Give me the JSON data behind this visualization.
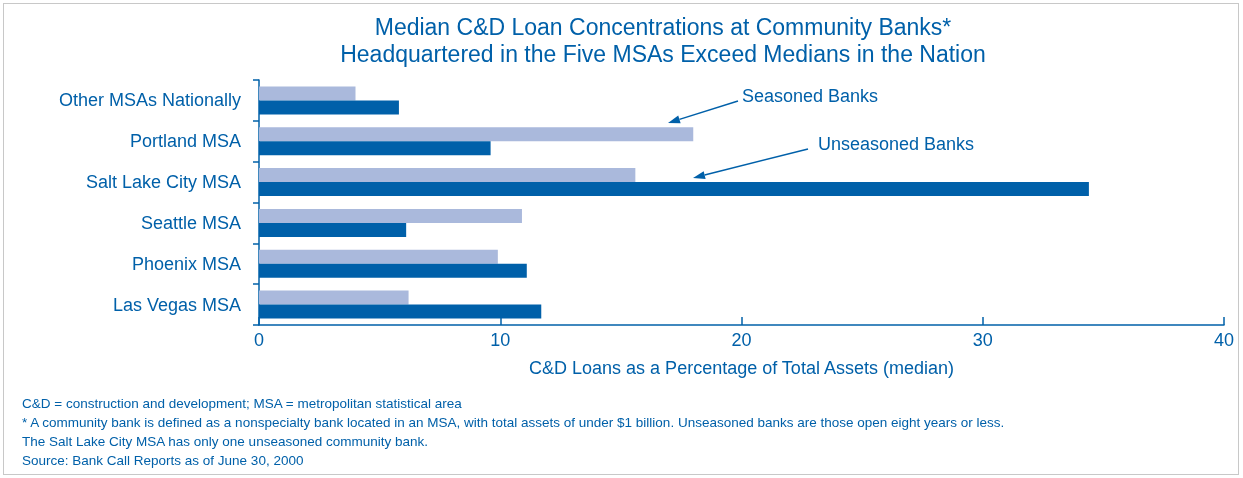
{
  "chart_data": {
    "type": "bar",
    "orientation": "horizontal",
    "title": "Median C&D Loan Concentrations at Community Banks*\nHeadquartered in the Five MSAs Exceed Medians in the Nation",
    "xlabel": "C&D Loans as a Percentage of Total Assets (median)",
    "categories": [
      "Other MSAs Nationally",
      "Portland MSA",
      "Salt Lake City MSA",
      "Seattle MSA",
      "Phoenix MSA",
      "Las Vegas MSA"
    ],
    "series": [
      {
        "name": "Seasoned Banks",
        "color": "#aab9dc",
        "values": [
          4.0,
          18.0,
          15.6,
          10.9,
          9.9,
          6.2
        ]
      },
      {
        "name": "Unseasoned Banks",
        "color": "#0060a9",
        "values": [
          5.8,
          9.6,
          34.4,
          6.1,
          11.1,
          11.7
        ]
      }
    ],
    "xlim": [
      0,
      40
    ],
    "xticks": [
      0,
      10,
      20,
      30,
      40
    ],
    "grid": false,
    "legend": false,
    "annotations": [
      "C&D = construction and development; MSA = metropolitan statistical area",
      "* A community bank is defined as a nonspecialty bank located in an MSA, with total assets of under $1 billion. Unseasoned banks are those open eight years or less.",
      "The Salt Lake City MSA has only one unseasoned community bank.",
      "Source: Bank Call Reports as of June 30, 2000"
    ]
  }
}
